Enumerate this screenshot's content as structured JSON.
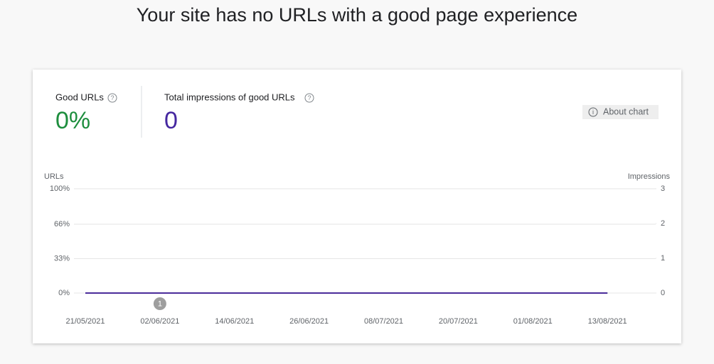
{
  "header": {
    "title": "Your site has no URLs with a good page experience"
  },
  "summary": {
    "good_urls": {
      "label": "Good URLs",
      "value": "0%",
      "color": "#1e8e3e"
    },
    "impressions": {
      "label": "Total impressions of good URLs",
      "value": "0",
      "color": "#4527a0"
    }
  },
  "about_chart": "About chart",
  "chart_data": {
    "type": "line",
    "y_label": "URLs",
    "y2_label": "Impressions",
    "x": [
      "21/05/2021",
      "02/06/2021",
      "14/06/2021",
      "26/06/2021",
      "08/07/2021",
      "20/07/2021",
      "01/08/2021",
      "13/08/2021"
    ],
    "series": [
      {
        "name": "Good URLs",
        "color": "#1e8e3e",
        "values": [
          0,
          0,
          0,
          0,
          0,
          0,
          0,
          0
        ]
      },
      {
        "name": "Impressions",
        "color": "#4a2c9a",
        "axis": "y2",
        "values": [
          0,
          0,
          0,
          0,
          0,
          0,
          0,
          0
        ]
      }
    ],
    "ylim": [
      0,
      100
    ],
    "yticks": [
      {
        "value": 0,
        "label": "0%"
      },
      {
        "value": 33,
        "label": "33%"
      },
      {
        "value": 66,
        "label": "66%"
      },
      {
        "value": 100,
        "label": "100%"
      }
    ],
    "y2lim": [
      0,
      3
    ],
    "y2ticks": [
      0,
      1,
      2,
      3
    ],
    "grid": true,
    "annotations": [
      {
        "x": "02/06/2021",
        "label": "1"
      }
    ]
  }
}
